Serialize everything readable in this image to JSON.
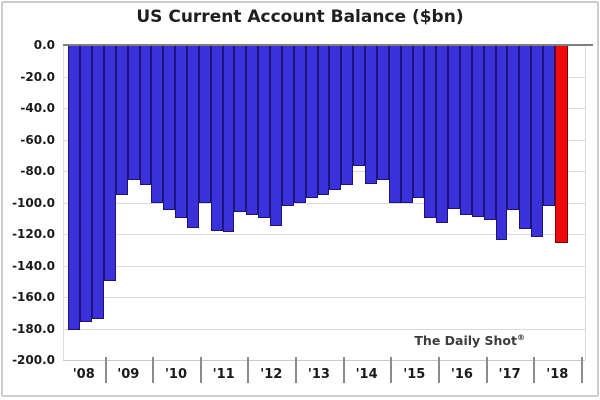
{
  "title": "US Current Account Balance ($bn)",
  "credit": {
    "text": "The Daily Shot",
    "mark": "®"
  },
  "chart_data": {
    "type": "bar",
    "title": "US Current Account Balance ($bn)",
    "unit": "$bn",
    "grid": true,
    "legend": "none",
    "ylim": [
      -200,
      0
    ],
    "ytick_step": -20,
    "ytick_labels": [
      "0.0",
      "-20.0",
      "-40.0",
      "-60.0",
      "-80.0",
      "-100.0",
      "-120.0",
      "-140.0",
      "-160.0",
      "-180.0",
      "-200.0"
    ],
    "x_year_labels": [
      "'08",
      "'09",
      "'10",
      "'11",
      "'12",
      "'13",
      "'14",
      "'15",
      "'16",
      "'17",
      "'18"
    ],
    "categories": [
      "2008 Q1",
      "2008 Q2",
      "2008 Q3",
      "2008 Q4",
      "2009 Q1",
      "2009 Q2",
      "2009 Q3",
      "2009 Q4",
      "2010 Q1",
      "2010 Q2",
      "2010 Q3",
      "2010 Q4",
      "2011 Q1",
      "2011 Q2",
      "2011 Q3",
      "2011 Q4",
      "2012 Q1",
      "2012 Q2",
      "2012 Q3",
      "2012 Q4",
      "2013 Q1",
      "2013 Q2",
      "2013 Q3",
      "2013 Q4",
      "2014 Q1",
      "2014 Q2",
      "2014 Q3",
      "2014 Q4",
      "2015 Q1",
      "2015 Q2",
      "2015 Q3",
      "2015 Q4",
      "2016 Q1",
      "2016 Q2",
      "2016 Q3",
      "2016 Q4",
      "2017 Q1",
      "2017 Q2",
      "2017 Q3",
      "2017 Q4",
      "2018 Q1",
      "2018 Q2"
    ],
    "values": [
      -181,
      -176,
      -174,
      -150,
      -95,
      -86,
      -89,
      -100,
      -105,
      -110,
      -116,
      -100,
      -118,
      -119,
      -106,
      -108,
      -110,
      -115,
      -102,
      -100,
      -97,
      -95,
      -92,
      -89,
      -77,
      -88,
      -86,
      -100,
      -100,
      -97,
      -110,
      -113,
      -104,
      -108,
      -109,
      -111,
      -124,
      -105,
      -117,
      -122,
      -102,
      -126
    ],
    "highlight_last_bar": true,
    "bar_color": "#3b31db",
    "highlight_color": "#ee0a0a",
    "gridline_color": "#dadada",
    "zero_line_color": "#7f7f7f"
  }
}
